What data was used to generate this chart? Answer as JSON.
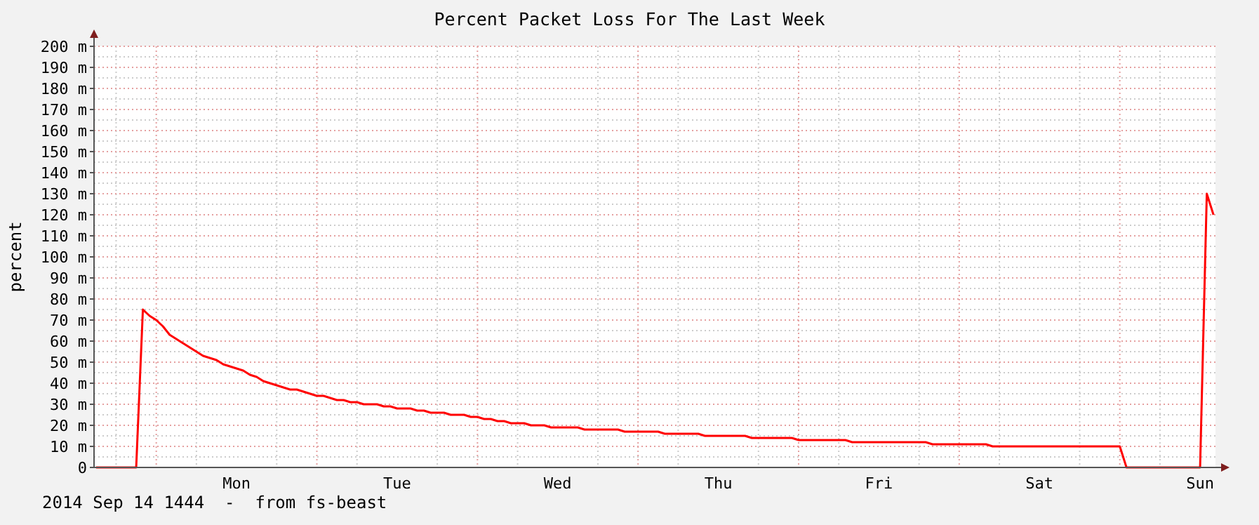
{
  "chart_data": {
    "type": "line",
    "title": "Percent Packet Loss For The Last Week",
    "ylabel": "percent",
    "annotations": [
      "2014 Sep 14 1444  -  from fs-beast"
    ],
    "categories": [
      null,
      null,
      null,
      null,
      null,
      null,
      null,
      null,
      null,
      null,
      null,
      null,
      null,
      null,
      null,
      null,
      null,
      null,
      null,
      null,
      null,
      "Mon",
      null,
      null,
      null,
      null,
      null,
      null,
      null,
      null,
      null,
      null,
      null,
      null,
      null,
      null,
      null,
      null,
      null,
      null,
      null,
      null,
      null,
      null,
      null,
      "Tue",
      null,
      null,
      null,
      null,
      null,
      null,
      null,
      null,
      null,
      null,
      null,
      null,
      null,
      null,
      null,
      null,
      null,
      null,
      null,
      null,
      null,
      null,
      null,
      "Wed",
      null,
      null,
      null,
      null,
      null,
      null,
      null,
      null,
      null,
      null,
      null,
      null,
      null,
      null,
      null,
      null,
      null,
      null,
      null,
      null,
      null,
      null,
      null,
      "Thu",
      null,
      null,
      null,
      null,
      null,
      null,
      null,
      null,
      null,
      null,
      null,
      null,
      null,
      null,
      null,
      null,
      null,
      null,
      null,
      null,
      null,
      null,
      null,
      "Fri",
      null,
      null,
      null,
      null,
      null,
      null,
      null,
      null,
      null,
      null,
      null,
      null,
      null,
      null,
      null,
      null,
      null,
      null,
      null,
      null,
      null,
      null,
      null,
      "Sat",
      null,
      null,
      null,
      null,
      null,
      null,
      null,
      null,
      null,
      null,
      null,
      null,
      null,
      null,
      null,
      null,
      null,
      null,
      null,
      null,
      null,
      null,
      null,
      "Sun",
      null,
      null
    ],
    "series": [
      {
        "color": "#ff0000",
        "values": [
          0,
          0,
          0,
          0,
          0,
          0,
          0,
          75,
          72,
          70,
          67,
          63,
          61,
          59,
          57,
          55,
          53,
          52,
          51,
          49,
          48,
          47,
          46,
          44,
          43,
          41,
          40,
          39,
          38,
          37,
          37,
          36,
          35,
          34,
          34,
          33,
          32,
          32,
          31,
          31,
          30,
          30,
          30,
          29,
          29,
          28,
          28,
          28,
          27,
          27,
          26,
          26,
          26,
          25,
          25,
          25,
          24,
          24,
          23,
          23,
          22,
          22,
          21,
          21,
          21,
          20,
          20,
          20,
          19,
          19,
          19,
          19,
          19,
          18,
          18,
          18,
          18,
          18,
          18,
          17,
          17,
          17,
          17,
          17,
          17,
          16,
          16,
          16,
          16,
          16,
          16,
          15,
          15,
          15,
          15,
          15,
          15,
          15,
          14,
          14,
          14,
          14,
          14,
          14,
          14,
          13,
          13,
          13,
          13,
          13,
          13,
          13,
          13,
          12,
          12,
          12,
          12,
          12,
          12,
          12,
          12,
          12,
          12,
          12,
          12,
          11,
          11,
          11,
          11,
          11,
          11,
          11,
          11,
          11,
          10,
          10,
          10,
          10,
          10,
          10,
          10,
          10,
          10,
          10,
          10,
          10,
          10,
          10,
          10,
          10,
          10,
          10,
          10,
          10,
          0,
          0,
          0,
          0,
          0,
          0,
          0,
          0,
          0,
          0,
          0,
          0,
          130,
          120
        ]
      }
    ],
    "ylim": [
      0,
      200
    ],
    "yticks": [
      0,
      {
        "value": 10,
        "label": "10 m"
      },
      {
        "value": 20,
        "label": "20 m"
      },
      {
        "value": 30,
        "label": "30 m"
      },
      {
        "value": 40,
        "label": "40 m"
      },
      {
        "value": 50,
        "label": "50 m"
      },
      {
        "value": 60,
        "label": "60 m"
      },
      {
        "value": 70,
        "label": "70 m"
      },
      {
        "value": 80,
        "label": "80 m"
      },
      {
        "value": 90,
        "label": "90 m"
      },
      {
        "value": 100,
        "label": "100 m"
      },
      {
        "value": 110,
        "label": "110 m"
      },
      {
        "value": 120,
        "label": "120 m"
      },
      {
        "value": 130,
        "label": "130 m"
      },
      {
        "value": 140,
        "label": "140 m"
      },
      {
        "value": 150,
        "label": "150 m"
      },
      {
        "value": 160,
        "label": "160 m"
      },
      {
        "value": 170,
        "label": "170 m"
      },
      {
        "value": 180,
        "label": "180 m"
      },
      {
        "value": 190,
        "label": "190 m"
      },
      {
        "value": 200,
        "label": "200 m"
      }
    ],
    "grid": true
  }
}
